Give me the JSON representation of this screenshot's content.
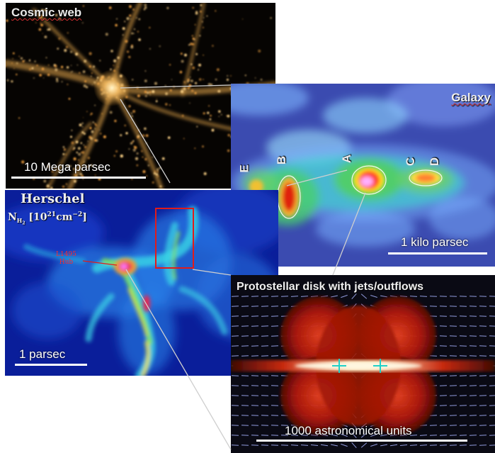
{
  "cosmic": {
    "title": "Cosmic web",
    "scale": "10 Mega parsec"
  },
  "galaxy": {
    "title": "Galaxy",
    "scale": "1 kilo parsec",
    "labels": {
      "e": "E",
      "b": "B",
      "a": "A",
      "c": "C",
      "d": "D"
    }
  },
  "herschel": {
    "title": "Herschel",
    "column_symbol": "N",
    "column_sub": "H",
    "column_sub2": "2",
    "column_units": "[10",
    "column_exp": "21",
    "column_units2": "cm",
    "column_exp2": "−2",
    "column_close": "]",
    "hub_line1": "L1495",
    "hub_line2": "Hub",
    "scale": "1 parsec"
  },
  "disk": {
    "title": "Protostellar disk with jets/outflows",
    "scale": "1000 astronomical units"
  },
  "colors": {
    "cosmic_bg": "#060402",
    "cosmic_filament": "#ffcf7a",
    "galaxy_bg": "#3a4aa8",
    "herschel_bg": "#0a1a8a",
    "disk_bg": "#0a0a14",
    "hub_red": "#e11b1b",
    "title_grey": "#e9e9e9"
  }
}
